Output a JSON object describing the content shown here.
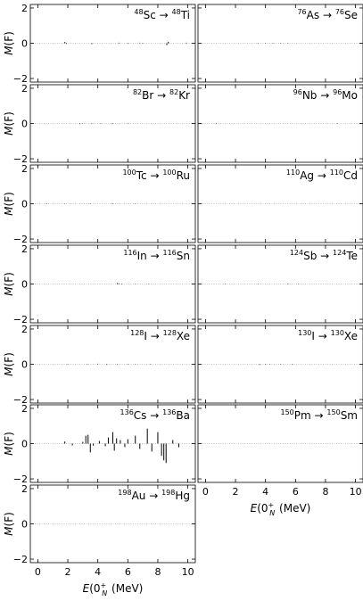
{
  "figure": {
    "y_axis_label": "M(F)",
    "x_axis_label": "E(0_N^+) (MeV)",
    "x_ticks": [
      "0",
      "2",
      "4",
      "6",
      "8",
      "10"
    ],
    "y_ticks": [
      "2",
      "0",
      "−2"
    ]
  },
  "chart_data": [
    {
      "type": "bar",
      "title": "48Sc → 48Ti",
      "parent": {
        "mass": "48",
        "symbol": "Sc"
      },
      "daughter": {
        "mass": "48",
        "symbol": "Ti"
      },
      "xlabel": "",
      "ylabel": "M(F)",
      "xlim": [
        -0.5,
        10.5
      ],
      "ylim": [
        -2.2,
        2.2
      ],
      "x": [
        1.8,
        1.9,
        3.6,
        5.4,
        6.0,
        6.8,
        7.0,
        8.6,
        8.7,
        9.9
      ],
      "values": [
        0.07,
        -0.04,
        -0.05,
        0.03,
        -0.03,
        0.03,
        -0.02,
        -0.1,
        0.08,
        0.03
      ]
    },
    {
      "type": "bar",
      "title": "76As → 76Se",
      "parent": {
        "mass": "76",
        "symbol": "As"
      },
      "daughter": {
        "mass": "76",
        "symbol": "Se"
      },
      "xlabel": "",
      "ylabel": "M(F)",
      "xlim": [
        -0.5,
        10.5
      ],
      "ylim": [
        -2.2,
        2.2
      ],
      "x": [
        3.5,
        4.0,
        4.5,
        5.0,
        5.5
      ],
      "values": [
        0.02,
        -0.02,
        0.02,
        -0.02,
        0.02
      ]
    },
    {
      "type": "bar",
      "title": "82Br → 82Kr",
      "parent": {
        "mass": "82",
        "symbol": "Br"
      },
      "daughter": {
        "mass": "82",
        "symbol": "Kr"
      },
      "xlabel": "",
      "ylabel": "M(F)",
      "xlim": [
        -0.5,
        10.5
      ],
      "ylim": [
        -2.2,
        2.2
      ],
      "x": [
        2.8,
        3.0,
        3.6,
        4.2,
        5.0,
        6.0
      ],
      "values": [
        -0.03,
        -0.02,
        0.02,
        -0.02,
        0.02,
        -0.02
      ]
    },
    {
      "type": "bar",
      "title": "96Nb → 96Mo",
      "parent": {
        "mass": "96",
        "symbol": "Nb"
      },
      "daughter": {
        "mass": "96",
        "symbol": "Mo"
      },
      "xlabel": "",
      "ylabel": "M(F)",
      "xlim": [
        -0.5,
        10.5
      ],
      "ylim": [
        -2.2,
        2.2
      ],
      "x": [
        0.7,
        8.8
      ],
      "values": [
        -0.03,
        0.02
      ]
    },
    {
      "type": "bar",
      "title": "100Tc → 100Ru",
      "parent": {
        "mass": "100",
        "symbol": "Tc"
      },
      "daughter": {
        "mass": "100",
        "symbol": "Ru"
      },
      "xlabel": "",
      "ylabel": "M(F)",
      "xlim": [
        -0.5,
        10.5
      ],
      "ylim": [
        -2.2,
        2.2
      ],
      "x": [
        0.6,
        1.8,
        3.5,
        5.0,
        6.5
      ],
      "values": [
        0.02,
        -0.02,
        0.02,
        -0.02,
        0.02
      ]
    },
    {
      "type": "bar",
      "title": "110Ag → 110Cd",
      "parent": {
        "mass": "110",
        "symbol": "Ag"
      },
      "daughter": {
        "mass": "110",
        "symbol": "Cd"
      },
      "xlabel": "",
      "ylabel": "M(F)",
      "xlim": [
        -0.5,
        10.5
      ],
      "ylim": [
        -2.2,
        2.2
      ],
      "x": [],
      "values": []
    },
    {
      "type": "bar",
      "title": "116In → 116Sn",
      "parent": {
        "mass": "116",
        "symbol": "In"
      },
      "daughter": {
        "mass": "116",
        "symbol": "Sn"
      },
      "xlabel": "",
      "ylabel": "M(F)",
      "xlim": [
        -0.5,
        10.5
      ],
      "ylim": [
        -2.2,
        2.2
      ],
      "x": [
        5.3,
        5.4,
        5.6,
        6.5,
        7.4
      ],
      "values": [
        0.05,
        0.04,
        -0.03,
        0.02,
        -0.02
      ]
    },
    {
      "type": "bar",
      "title": "124Sb → 124Te",
      "parent": {
        "mass": "124",
        "symbol": "Sb"
      },
      "daughter": {
        "mass": "124",
        "symbol": "Te"
      },
      "xlabel": "",
      "ylabel": "M(F)",
      "xlim": [
        -0.5,
        10.5
      ],
      "ylim": [
        -2.2,
        2.2
      ],
      "x": [
        1.3,
        3.5,
        5.5,
        6.2
      ],
      "values": [
        0.02,
        -0.02,
        0.03,
        -0.02
      ]
    },
    {
      "type": "bar",
      "title": "128I → 128Xe",
      "parent": {
        "mass": "128",
        "symbol": "I"
      },
      "daughter": {
        "mass": "128",
        "symbol": "Xe"
      },
      "xlabel": "",
      "ylabel": "M(F)",
      "xlim": [
        -0.5,
        10.5
      ],
      "ylim": [
        -2.2,
        2.2
      ],
      "x": [
        2.0,
        3.3,
        4.0,
        4.6,
        5.3,
        6.0,
        6.5,
        7.5
      ],
      "values": [
        0.02,
        -0.02,
        0.03,
        -0.03,
        0.02,
        -0.02,
        0.02,
        -0.02
      ]
    },
    {
      "type": "bar",
      "title": "130I → 130Xe",
      "parent": {
        "mass": "130",
        "symbol": "I"
      },
      "daughter": {
        "mass": "130",
        "symbol": "Xe"
      },
      "xlabel": "",
      "ylabel": "M(F)",
      "xlim": [
        -0.5,
        10.5
      ],
      "ylim": [
        -2.2,
        2.2
      ],
      "x": [
        3.6,
        4.0,
        4.3,
        5.0,
        5.8
      ],
      "values": [
        -0.04,
        -0.03,
        0.02,
        -0.02,
        0.02
      ]
    },
    {
      "type": "bar",
      "title": "136Cs → 136Ba",
      "parent": {
        "mass": "136",
        "symbol": "Cs"
      },
      "daughter": {
        "mass": "136",
        "symbol": "Ba"
      },
      "xlabel": "",
      "ylabel": "M(F)",
      "xlim": [
        -0.5,
        10.5
      ],
      "ylim": [
        -2.2,
        2.2
      ],
      "x": [
        1.8,
        2.3,
        3.0,
        3.2,
        3.35,
        3.5,
        3.7,
        4.1,
        4.5,
        4.7,
        5.0,
        5.1,
        5.25,
        5.5,
        5.8,
        6.0,
        6.5,
        6.8,
        7.3,
        7.6,
        8.0,
        8.25,
        8.4,
        8.55,
        9.0,
        9.4
      ],
      "values": [
        0.12,
        -0.1,
        0.1,
        0.45,
        0.5,
        -0.5,
        -0.12,
        0.15,
        -0.15,
        0.35,
        0.65,
        -0.4,
        0.3,
        0.2,
        -0.2,
        0.25,
        0.45,
        -0.3,
        0.85,
        -0.45,
        0.65,
        -0.7,
        -0.95,
        -1.1,
        0.2,
        -0.2
      ]
    },
    {
      "type": "bar",
      "title": "150Pm → 150Sm",
      "parent": {
        "mass": "150",
        "symbol": "Pm"
      },
      "daughter": {
        "mass": "150",
        "symbol": "Sm"
      },
      "xlabel": "E(0_N^+) (MeV)",
      "ylabel": "M(F)",
      "xlim": [
        -0.5,
        10.5
      ],
      "ylim": [
        -2.2,
        2.2
      ],
      "x": [],
      "values": []
    },
    {
      "type": "bar",
      "title": "198Au → 198Hg",
      "parent": {
        "mass": "198",
        "symbol": "Au"
      },
      "daughter": {
        "mass": "198",
        "symbol": "Hg"
      },
      "xlabel": "E(0_N^+) (MeV)",
      "ylabel": "M(F)",
      "xlim": [
        -0.5,
        10.5
      ],
      "ylim": [
        -2.2,
        2.2
      ],
      "x": [],
      "values": []
    }
  ]
}
